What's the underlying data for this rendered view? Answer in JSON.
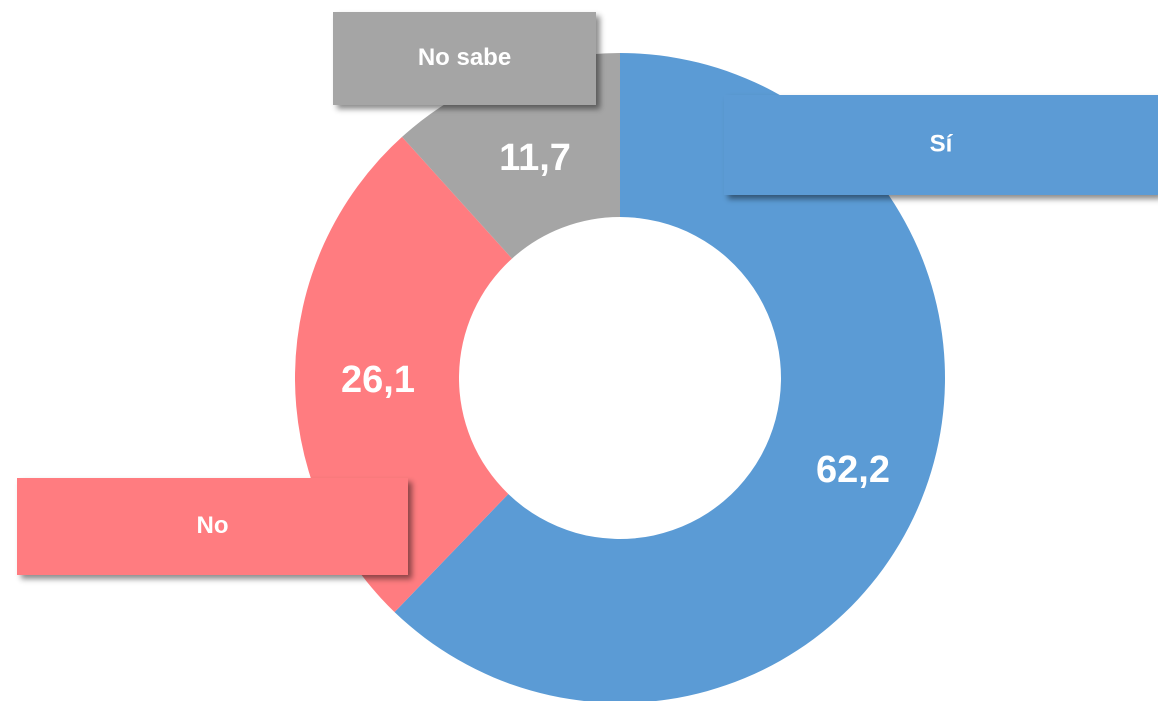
{
  "chart_data": {
    "type": "donut",
    "categories": [
      "Sí",
      "No",
      "No sabe"
    ],
    "values": [
      62.2,
      26.1,
      11.7
    ],
    "value_labels": [
      "62,2",
      "26,1",
      "11,7"
    ],
    "colors": [
      "#5b9bd5",
      "#ff7c80",
      "#a5a5a5"
    ]
  }
}
